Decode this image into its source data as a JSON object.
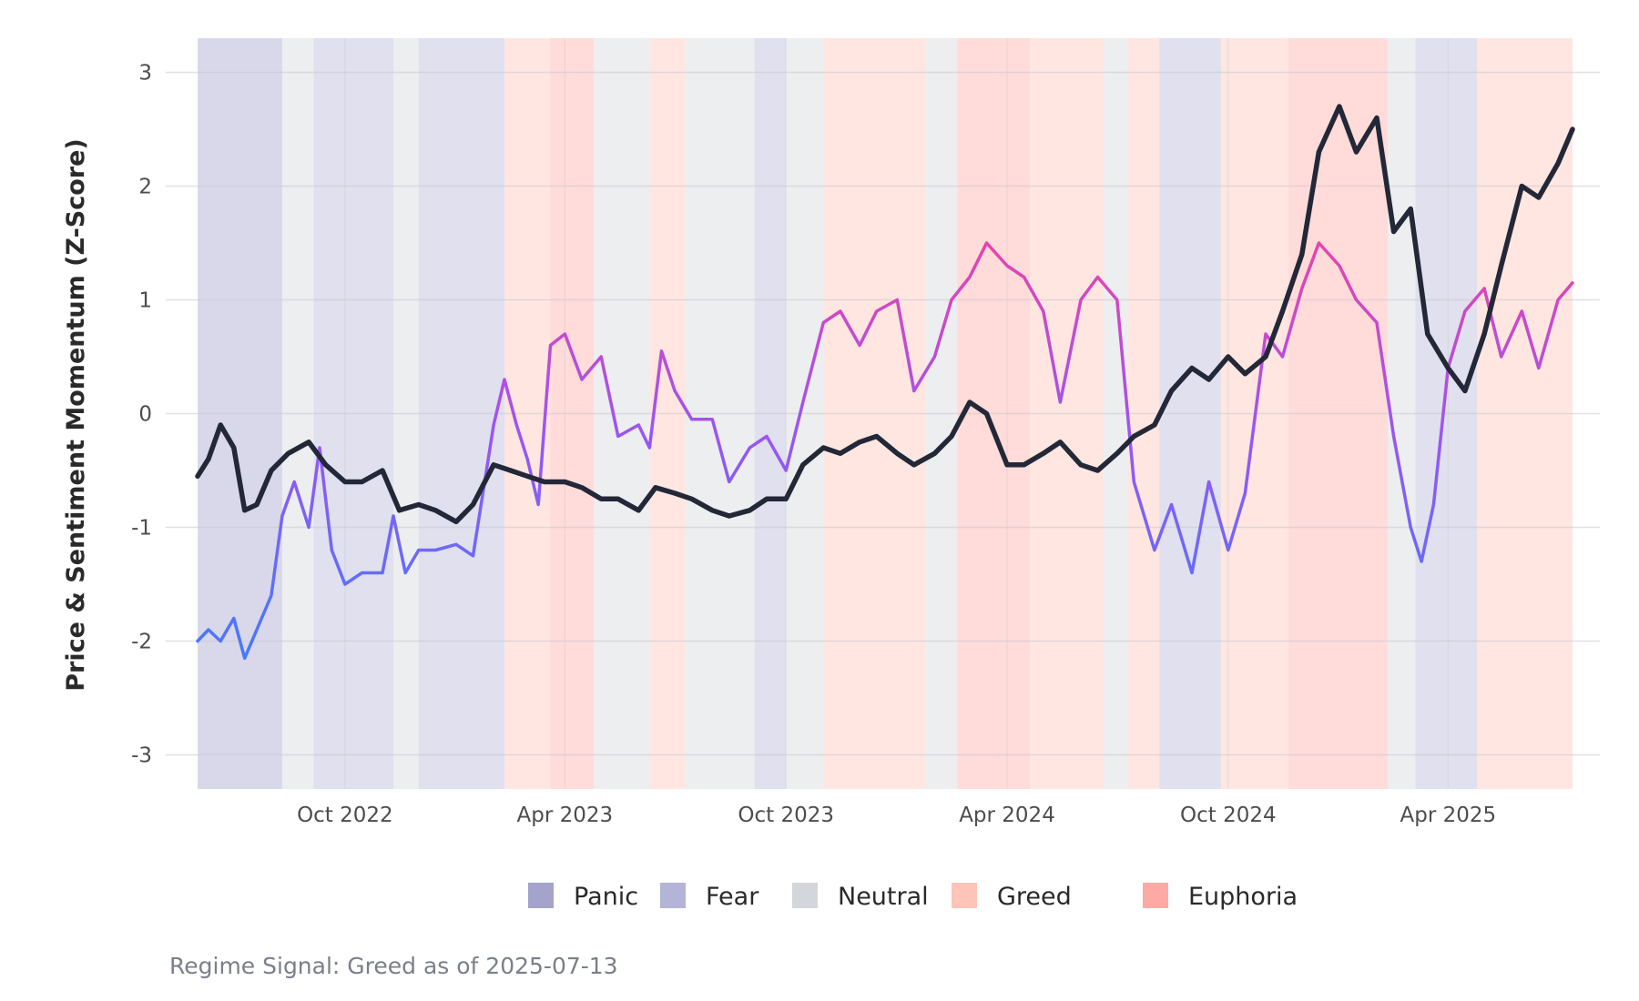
{
  "chart_data": {
    "type": "line",
    "title": "",
    "xlabel": "",
    "ylabel": "Price & Sentiment Momentum (Z-Score)",
    "ylim": [
      -3.3,
      3.3
    ],
    "xlim": [
      "2022-06-01",
      "2025-07-13"
    ],
    "y_ticks": [
      -3,
      -2,
      -1,
      0,
      1,
      2,
      3
    ],
    "y_tick_labels": [
      "-3",
      "-2",
      "-1",
      "0",
      "1",
      "2",
      "3"
    ],
    "x_ticks": [
      "2022-10-01",
      "2023-04-01",
      "2023-10-01",
      "2024-04-01",
      "2024-10-01",
      "2025-04-01"
    ],
    "x_tick_labels": [
      "Oct 2022",
      "Apr 2023",
      "Oct 2023",
      "Apr 2024",
      "Oct 2024",
      "Apr 2025"
    ],
    "grid": true,
    "legend_position": "bottom",
    "legend": [
      {
        "label": "Panic",
        "color": "#a3a3cc"
      },
      {
        "label": "Fear",
        "color": "#b4b4d6"
      },
      {
        "label": "Neutral",
        "color": "#d3d6db"
      },
      {
        "label": "Greed",
        "color": "#ffc4b8"
      },
      {
        "label": "Euphoria",
        "color": "#ffa9a4"
      }
    ],
    "regime_bands": [
      {
        "start": "2022-06-01",
        "end": "2022-08-10",
        "regime": "Panic"
      },
      {
        "start": "2022-08-10",
        "end": "2022-09-05",
        "regime": "Neutral"
      },
      {
        "start": "2022-09-05",
        "end": "2022-11-10",
        "regime": "Fear"
      },
      {
        "start": "2022-11-10",
        "end": "2022-12-01",
        "regime": "Neutral"
      },
      {
        "start": "2022-12-01",
        "end": "2023-02-10",
        "regime": "Fear"
      },
      {
        "start": "2023-02-10",
        "end": "2023-03-20",
        "regime": "Greed"
      },
      {
        "start": "2023-03-20",
        "end": "2023-04-25",
        "regime": "Euphoria"
      },
      {
        "start": "2023-04-25",
        "end": "2023-06-10",
        "regime": "Neutral"
      },
      {
        "start": "2023-06-10",
        "end": "2023-07-10",
        "regime": "Greed"
      },
      {
        "start": "2023-07-10",
        "end": "2023-09-05",
        "regime": "Neutral"
      },
      {
        "start": "2023-09-05",
        "end": "2023-10-01",
        "regime": "Fear"
      },
      {
        "start": "2023-10-01",
        "end": "2023-11-01",
        "regime": "Neutral"
      },
      {
        "start": "2023-11-01",
        "end": "2024-01-25",
        "regime": "Greed"
      },
      {
        "start": "2024-01-25",
        "end": "2024-02-20",
        "regime": "Neutral"
      },
      {
        "start": "2024-02-20",
        "end": "2024-04-20",
        "regime": "Euphoria"
      },
      {
        "start": "2024-04-20",
        "end": "2024-06-20",
        "regime": "Greed"
      },
      {
        "start": "2024-06-20",
        "end": "2024-07-10",
        "regime": "Neutral"
      },
      {
        "start": "2024-07-10",
        "end": "2024-08-05",
        "regime": "Greed"
      },
      {
        "start": "2024-08-05",
        "end": "2024-09-25",
        "regime": "Fear"
      },
      {
        "start": "2024-09-25",
        "end": "2024-11-20",
        "regime": "Greed"
      },
      {
        "start": "2024-11-20",
        "end": "2025-02-10",
        "regime": "Euphoria"
      },
      {
        "start": "2025-02-10",
        "end": "2025-03-05",
        "regime": "Neutral"
      },
      {
        "start": "2025-03-05",
        "end": "2025-04-25",
        "regime": "Fear"
      },
      {
        "start": "2025-04-25",
        "end": "2025-07-13",
        "regime": "Greed"
      }
    ],
    "series": [
      {
        "color": "#232838",
        "x": [
          "2022-06-01",
          "2022-06-10",
          "2022-06-20",
          "2022-07-01",
          "2022-07-10",
          "2022-07-20",
          "2022-08-01",
          "2022-08-15",
          "2022-09-01",
          "2022-09-15",
          "2022-10-01",
          "2022-10-15",
          "2022-11-01",
          "2022-11-15",
          "2022-12-01",
          "2022-12-15",
          "2023-01-01",
          "2023-01-15",
          "2023-02-01",
          "2023-02-15",
          "2023-03-01",
          "2023-03-15",
          "2023-04-01",
          "2023-04-15",
          "2023-05-01",
          "2023-05-15",
          "2023-06-01",
          "2023-06-15",
          "2023-07-01",
          "2023-07-15",
          "2023-08-01",
          "2023-08-15",
          "2023-09-01",
          "2023-09-15",
          "2023-10-01",
          "2023-10-15",
          "2023-11-01",
          "2023-11-15",
          "2023-12-01",
          "2023-12-15",
          "2024-01-01",
          "2024-01-15",
          "2024-02-01",
          "2024-02-15",
          "2024-03-01",
          "2024-03-15",
          "2024-04-01",
          "2024-04-15",
          "2024-05-01",
          "2024-05-15",
          "2024-06-01",
          "2024-06-15",
          "2024-07-01",
          "2024-07-15",
          "2024-08-01",
          "2024-08-15",
          "2024-09-01",
          "2024-09-15",
          "2024-10-01",
          "2024-10-15",
          "2024-11-01",
          "2024-11-15",
          "2024-12-01",
          "2024-12-15",
          "2025-01-01",
          "2025-01-15",
          "2025-02-01",
          "2025-02-15",
          "2025-03-01",
          "2025-03-15",
          "2025-04-01",
          "2025-04-15",
          "2025-05-01",
          "2025-05-15",
          "2025-06-01",
          "2025-06-15",
          "2025-07-01",
          "2025-07-13"
        ],
        "y": [
          -0.55,
          -0.4,
          -0.1,
          -0.3,
          -0.85,
          -0.8,
          -0.5,
          -0.35,
          -0.25,
          -0.45,
          -0.6,
          -0.6,
          -0.5,
          -0.85,
          -0.8,
          -0.85,
          -0.95,
          -0.8,
          -0.45,
          -0.5,
          -0.55,
          -0.6,
          -0.6,
          -0.65,
          -0.75,
          -0.75,
          -0.85,
          -0.65,
          -0.7,
          -0.75,
          -0.85,
          -0.9,
          -0.85,
          -0.75,
          -0.75,
          -0.45,
          -0.3,
          -0.35,
          -0.25,
          -0.2,
          -0.35,
          -0.45,
          -0.35,
          -0.2,
          0.1,
          0.0,
          -0.45,
          -0.45,
          -0.35,
          -0.25,
          -0.45,
          -0.5,
          -0.35,
          -0.2,
          -0.1,
          0.2,
          0.4,
          0.3,
          0.5,
          0.35,
          0.5,
          0.9,
          1.4,
          2.3,
          2.7,
          2.3,
          2.6,
          1.6,
          1.8,
          0.7,
          0.4,
          0.2,
          0.7,
          1.3,
          2.0,
          1.9,
          2.2,
          2.5
        ]
      },
      {
        "color_low": "#3d7dff",
        "color_mid": "#9b55f2",
        "color_high": "#ff3d9a",
        "x": [
          "2022-06-01",
          "2022-06-10",
          "2022-06-20",
          "2022-07-01",
          "2022-07-10",
          "2022-07-20",
          "2022-08-01",
          "2022-08-10",
          "2022-08-20",
          "2022-09-01",
          "2022-09-10",
          "2022-09-20",
          "2022-10-01",
          "2022-10-15",
          "2022-11-01",
          "2022-11-10",
          "2022-11-20",
          "2022-12-01",
          "2022-12-15",
          "2023-01-01",
          "2023-01-15",
          "2023-02-01",
          "2023-02-10",
          "2023-02-20",
          "2023-03-01",
          "2023-03-10",
          "2023-03-20",
          "2023-04-01",
          "2023-04-15",
          "2023-05-01",
          "2023-05-15",
          "2023-06-01",
          "2023-06-10",
          "2023-06-20",
          "2023-07-01",
          "2023-07-15",
          "2023-08-01",
          "2023-08-15",
          "2023-09-01",
          "2023-09-15",
          "2023-10-01",
          "2023-10-15",
          "2023-11-01",
          "2023-11-15",
          "2023-12-01",
          "2023-12-15",
          "2024-01-01",
          "2024-01-15",
          "2024-02-01",
          "2024-02-15",
          "2024-03-01",
          "2024-03-15",
          "2024-04-01",
          "2024-04-15",
          "2024-05-01",
          "2024-05-15",
          "2024-06-01",
          "2024-06-15",
          "2024-07-01",
          "2024-07-15",
          "2024-08-01",
          "2024-08-15",
          "2024-09-01",
          "2024-09-15",
          "2024-10-01",
          "2024-10-15",
          "2024-11-01",
          "2024-11-15",
          "2024-12-01",
          "2024-12-15",
          "2025-01-01",
          "2025-01-15",
          "2025-02-01",
          "2025-02-15",
          "2025-03-01",
          "2025-03-10",
          "2025-03-20",
          "2025-04-01",
          "2025-04-15",
          "2025-05-01",
          "2025-05-15",
          "2025-06-01",
          "2025-06-15",
          "2025-07-01",
          "2025-07-13"
        ],
        "y": [
          -2.0,
          -1.9,
          -2.0,
          -1.8,
          -2.15,
          -1.9,
          -1.6,
          -0.9,
          -0.6,
          -1.0,
          -0.3,
          -1.2,
          -1.5,
          -1.4,
          -1.4,
          -0.9,
          -1.4,
          -1.2,
          -1.2,
          -1.15,
          -1.25,
          -0.1,
          0.3,
          -0.1,
          -0.4,
          -0.8,
          0.6,
          0.7,
          0.3,
          0.5,
          -0.2,
          -0.1,
          -0.3,
          0.55,
          0.2,
          -0.05,
          -0.05,
          -0.6,
          -0.3,
          -0.2,
          -0.5,
          0.1,
          0.8,
          0.9,
          0.6,
          0.9,
          1.0,
          0.2,
          0.5,
          1.0,
          1.2,
          1.5,
          1.3,
          1.2,
          0.9,
          0.1,
          1.0,
          1.2,
          1.0,
          -0.6,
          -1.2,
          -0.8,
          -1.4,
          -0.6,
          -1.2,
          -0.7,
          0.7,
          0.5,
          1.1,
          1.5,
          1.3,
          1.0,
          0.8,
          -0.2,
          -1.0,
          -1.3,
          -0.8,
          0.4,
          0.9,
          1.1,
          0.5,
          0.9,
          0.4,
          1.0,
          1.15
        ]
      }
    ]
  },
  "caption": "Regime Signal: Greed as of 2025-07-13"
}
